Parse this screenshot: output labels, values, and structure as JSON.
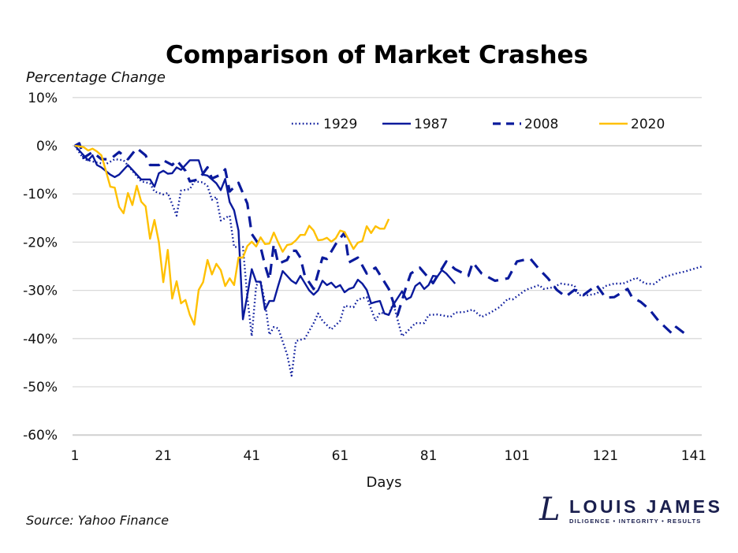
{
  "chart_data": {
    "type": "line",
    "title": "Comparison of Market Crashes",
    "ylabel": "Percentage Change",
    "xlabel": "Days",
    "xlim": [
      1,
      143
    ],
    "ylim": [
      -60,
      10
    ],
    "x_ticks": [
      "1",
      "21",
      "41",
      "61",
      "81",
      "101",
      "121",
      "141"
    ],
    "y_ticks": [
      "10%",
      "0%",
      "-10%",
      "-20%",
      "-30%",
      "-40%",
      "-50%",
      "-60%"
    ],
    "grid": "horizontal",
    "legend_position": "top-right",
    "series": [
      {
        "name": "1929",
        "style": "dotted",
        "color": "#0a1a9c",
        "points": [
          [
            1,
            0
          ],
          [
            3,
            -2.8
          ],
          [
            6,
            -3.5
          ],
          [
            8,
            -3.8
          ],
          [
            10,
            -2.8
          ],
          [
            12,
            -3
          ],
          [
            14,
            -5.2
          ],
          [
            16,
            -7.4
          ],
          [
            18,
            -7.8
          ],
          [
            19,
            -9.5
          ],
          [
            21,
            -10.1
          ],
          [
            22,
            -9.8
          ],
          [
            24,
            -14.5
          ],
          [
            25,
            -9.3
          ],
          [
            27,
            -9
          ],
          [
            28,
            -7.4
          ],
          [
            30,
            -7.6
          ],
          [
            31,
            -8.4
          ],
          [
            32,
            -11.2
          ],
          [
            33,
            -10.6
          ],
          [
            34,
            -15.5
          ],
          [
            36,
            -14.5
          ],
          [
            37,
            -21
          ],
          [
            39,
            -21
          ],
          [
            40,
            -31.4
          ],
          [
            41,
            -39.5
          ],
          [
            42,
            -29
          ],
          [
            43,
            -28
          ],
          [
            44,
            -32.4
          ],
          [
            45,
            -39.2
          ],
          [
            46,
            -37.6
          ],
          [
            47,
            -37.9
          ],
          [
            49,
            -43.3
          ],
          [
            50,
            -47.7
          ],
          [
            51,
            -40.5
          ],
          [
            53,
            -40
          ],
          [
            55,
            -36.8
          ],
          [
            56,
            -34.8
          ],
          [
            57,
            -36.3
          ],
          [
            59,
            -38.1
          ],
          [
            61,
            -36.3
          ],
          [
            62,
            -33.2
          ],
          [
            64,
            -33.5
          ],
          [
            65,
            -31.9
          ],
          [
            67,
            -31.4
          ],
          [
            69,
            -36.3
          ],
          [
            70,
            -34.6
          ],
          [
            72,
            -35
          ],
          [
            73,
            -32.7
          ],
          [
            75,
            -39.5
          ],
          [
            76,
            -38.7
          ],
          [
            78,
            -36.8
          ],
          [
            80,
            -36.8
          ],
          [
            81,
            -35.1
          ],
          [
            83,
            -35
          ],
          [
            86,
            -35.5
          ],
          [
            87,
            -34.6
          ],
          [
            89,
            -34.5
          ],
          [
            91,
            -34
          ],
          [
            93,
            -35.5
          ],
          [
            95,
            -34.6
          ],
          [
            97,
            -33.5
          ],
          [
            99,
            -31.7
          ],
          [
            100,
            -31.9
          ],
          [
            103,
            -29.9
          ],
          [
            106,
            -28.9
          ],
          [
            107,
            -29.7
          ],
          [
            109,
            -29.4
          ],
          [
            111,
            -28.6
          ],
          [
            114,
            -29
          ],
          [
            115,
            -31
          ],
          [
            117,
            -31
          ],
          [
            119,
            -30.7
          ],
          [
            121,
            -29.1
          ],
          [
            123,
            -28.6
          ],
          [
            125,
            -28.6
          ],
          [
            128,
            -27.4
          ],
          [
            130,
            -28.6
          ],
          [
            132,
            -28.7
          ],
          [
            134,
            -27.3
          ],
          [
            137,
            -26.5
          ],
          [
            139,
            -26.1
          ],
          [
            140,
            -25.8
          ],
          [
            143,
            -25
          ]
        ]
      },
      {
        "name": "1987",
        "style": "solid",
        "color": "#0a1a9c",
        "points": [
          [
            1,
            0
          ],
          [
            4,
            -3
          ],
          [
            5,
            -2
          ],
          [
            6,
            -4
          ],
          [
            7,
            -4.5
          ],
          [
            9,
            -6
          ],
          [
            10,
            -6.5
          ],
          [
            11,
            -6
          ],
          [
            13,
            -4
          ],
          [
            14,
            -5
          ],
          [
            16,
            -7
          ],
          [
            18,
            -7
          ],
          [
            19,
            -8.5
          ],
          [
            20,
            -5.7
          ],
          [
            21,
            -5.2
          ],
          [
            22,
            -5.8
          ],
          [
            23,
            -5.7
          ],
          [
            24,
            -4.5
          ],
          [
            25,
            -5
          ],
          [
            27,
            -3
          ],
          [
            29,
            -3
          ],
          [
            30,
            -6
          ],
          [
            31,
            -6.2
          ],
          [
            33,
            -7.8
          ],
          [
            34,
            -9.2
          ],
          [
            35,
            -6.9
          ],
          [
            36,
            -11.7
          ],
          [
            37,
            -13.4
          ],
          [
            38,
            -17.6
          ],
          [
            39,
            -36
          ],
          [
            40,
            -31
          ],
          [
            41,
            -25.6
          ],
          [
            42,
            -28.2
          ],
          [
            43,
            -28.2
          ],
          [
            44,
            -34
          ],
          [
            45,
            -32.2
          ],
          [
            46,
            -32.2
          ],
          [
            47,
            -29
          ],
          [
            48,
            -26
          ],
          [
            50,
            -28
          ],
          [
            51,
            -28.6
          ],
          [
            52,
            -27
          ],
          [
            54,
            -30
          ],
          [
            55,
            -30.9
          ],
          [
            56,
            -30
          ],
          [
            57,
            -28
          ],
          [
            58,
            -28.9
          ],
          [
            59,
            -28.4
          ],
          [
            60,
            -29.4
          ],
          [
            61,
            -28.9
          ],
          [
            62,
            -30.4
          ],
          [
            63,
            -29.7
          ],
          [
            64,
            -29.4
          ],
          [
            65,
            -27.8
          ],
          [
            66,
            -28.6
          ],
          [
            67,
            -29.9
          ],
          [
            68,
            -32.7
          ],
          [
            69,
            -32.4
          ],
          [
            70,
            -32.2
          ],
          [
            71,
            -34.8
          ],
          [
            72,
            -35.1
          ],
          [
            73,
            -33
          ],
          [
            75,
            -30.2
          ],
          [
            76,
            -31.9
          ],
          [
            77,
            -31.4
          ],
          [
            78,
            -29.1
          ],
          [
            79,
            -28.4
          ],
          [
            80,
            -29.7
          ],
          [
            81,
            -28.9
          ],
          [
            82,
            -27
          ],
          [
            83,
            -27.1
          ],
          [
            84,
            -25.8
          ],
          [
            85,
            -26.5
          ],
          [
            87,
            -28.6
          ]
        ]
      },
      {
        "name": "2008",
        "style": "dashed",
        "color": "#0a1a9c",
        "points": [
          [
            1,
            0
          ],
          [
            2,
            0.5
          ],
          [
            3,
            -2.5
          ],
          [
            5,
            -1.3
          ],
          [
            7,
            -2.8
          ],
          [
            9,
            -2.8
          ],
          [
            11,
            -1.3
          ],
          [
            13,
            -2.8
          ],
          [
            15,
            -0.5
          ],
          [
            17,
            -2
          ],
          [
            18,
            -4
          ],
          [
            20,
            -4
          ],
          [
            21,
            -3
          ],
          [
            23,
            -4
          ],
          [
            24,
            -3
          ],
          [
            26,
            -5.2
          ],
          [
            27,
            -7.4
          ],
          [
            29,
            -7
          ],
          [
            31,
            -4.5
          ],
          [
            32,
            -6.8
          ],
          [
            34,
            -6
          ],
          [
            35,
            -4.9
          ],
          [
            36,
            -9.5
          ],
          [
            38,
            -7.7
          ],
          [
            40,
            -12
          ],
          [
            41,
            -18.3
          ],
          [
            43,
            -21
          ],
          [
            44,
            -24.8
          ],
          [
            45,
            -27.8
          ],
          [
            46,
            -20.4
          ],
          [
            47,
            -24.5
          ],
          [
            49,
            -23.7
          ],
          [
            50,
            -21.8
          ],
          [
            51,
            -21.8
          ],
          [
            52,
            -23.2
          ],
          [
            53,
            -27
          ],
          [
            55,
            -29.7
          ],
          [
            57,
            -23.2
          ],
          [
            58,
            -23.5
          ],
          [
            60,
            -20.4
          ],
          [
            62,
            -18
          ],
          [
            63,
            -24.2
          ],
          [
            65,
            -23.2
          ],
          [
            67,
            -26.5
          ],
          [
            69,
            -25.3
          ],
          [
            72,
            -29.7
          ],
          [
            74,
            -35.1
          ],
          [
            76,
            -29.1
          ],
          [
            77,
            -26.5
          ],
          [
            79,
            -25.3
          ],
          [
            82,
            -28.5
          ],
          [
            85,
            -24
          ],
          [
            87,
            -25.6
          ],
          [
            90,
            -27
          ],
          [
            91,
            -24.2
          ],
          [
            93,
            -26.5
          ],
          [
            96,
            -28
          ],
          [
            99,
            -27.5
          ],
          [
            101,
            -24
          ],
          [
            104,
            -23.4
          ],
          [
            106,
            -25.6
          ],
          [
            108,
            -27.5
          ],
          [
            110,
            -29.9
          ],
          [
            112,
            -31.3
          ],
          [
            114,
            -29.9
          ],
          [
            116,
            -31
          ],
          [
            119,
            -28.9
          ],
          [
            121,
            -31.5
          ],
          [
            123,
            -31.4
          ],
          [
            126,
            -29.7
          ],
          [
            127,
            -31.4
          ],
          [
            129,
            -32.4
          ],
          [
            131,
            -34
          ],
          [
            133,
            -36.3
          ],
          [
            136,
            -38.9
          ],
          [
            137,
            -37.6
          ],
          [
            140,
            -39.7
          ]
        ]
      },
      {
        "name": "2020",
        "style": "solid",
        "color": "#ffc000",
        "points": [
          [
            1,
            0
          ],
          [
            3,
            -0.3
          ],
          [
            4,
            -1
          ],
          [
            5,
            -0.6
          ],
          [
            6,
            -1.2
          ],
          [
            7,
            -2
          ],
          [
            8,
            -5.2
          ],
          [
            9,
            -8.5
          ],
          [
            10,
            -8.7
          ],
          [
            11,
            -12.7
          ],
          [
            12,
            -14
          ],
          [
            13,
            -9.8
          ],
          [
            14,
            -12.3
          ],
          [
            15,
            -8.3
          ],
          [
            16,
            -11.6
          ],
          [
            17,
            -12.6
          ],
          [
            18,
            -19.3
          ],
          [
            19,
            -15.4
          ],
          [
            20,
            -20
          ],
          [
            21,
            -28.3
          ],
          [
            22,
            -21.6
          ],
          [
            23,
            -31.7
          ],
          [
            24,
            -28.1
          ],
          [
            25,
            -32.7
          ],
          [
            26,
            -32
          ],
          [
            27,
            -35.1
          ],
          [
            28,
            -37.1
          ],
          [
            29,
            -29.9
          ],
          [
            30,
            -28.3
          ],
          [
            31,
            -23.7
          ],
          [
            32,
            -26.7
          ],
          [
            33,
            -24.5
          ],
          [
            34,
            -25.8
          ],
          [
            35,
            -29.1
          ],
          [
            36,
            -27.5
          ],
          [
            37,
            -28.9
          ],
          [
            38,
            -23.2
          ],
          [
            39,
            -23.2
          ],
          [
            40,
            -20.8
          ],
          [
            41,
            -19.9
          ],
          [
            42,
            -20.9
          ],
          [
            43,
            -19
          ],
          [
            44,
            -20.4
          ],
          [
            45,
            -20.3
          ],
          [
            46,
            -18
          ],
          [
            47,
            -20.1
          ],
          [
            48,
            -22
          ],
          [
            49,
            -20.6
          ],
          [
            50,
            -20.4
          ],
          [
            51,
            -19.6
          ],
          [
            52,
            -18.5
          ],
          [
            53,
            -18.5
          ],
          [
            54,
            -16.6
          ],
          [
            55,
            -17.6
          ],
          [
            56,
            -19.6
          ],
          [
            57,
            -19.5
          ],
          [
            58,
            -19.1
          ],
          [
            59,
            -19.9
          ],
          [
            60,
            -19.2
          ],
          [
            61,
            -17.6
          ],
          [
            62,
            -17.9
          ],
          [
            63,
            -19.6
          ],
          [
            64,
            -21.4
          ],
          [
            65,
            -20.1
          ],
          [
            66,
            -19.8
          ],
          [
            67,
            -16.7
          ],
          [
            68,
            -18.1
          ],
          [
            69,
            -16.7
          ],
          [
            70,
            -17.2
          ],
          [
            71,
            -17.2
          ],
          [
            72,
            -15.2
          ]
        ]
      }
    ]
  },
  "source": "Source: Yahoo Finance",
  "logo": {
    "name": "LOUIS JAMES",
    "tagline": "DILIGENCE • INTEGRITY • RESULTS",
    "color": "#1a1f4e"
  }
}
